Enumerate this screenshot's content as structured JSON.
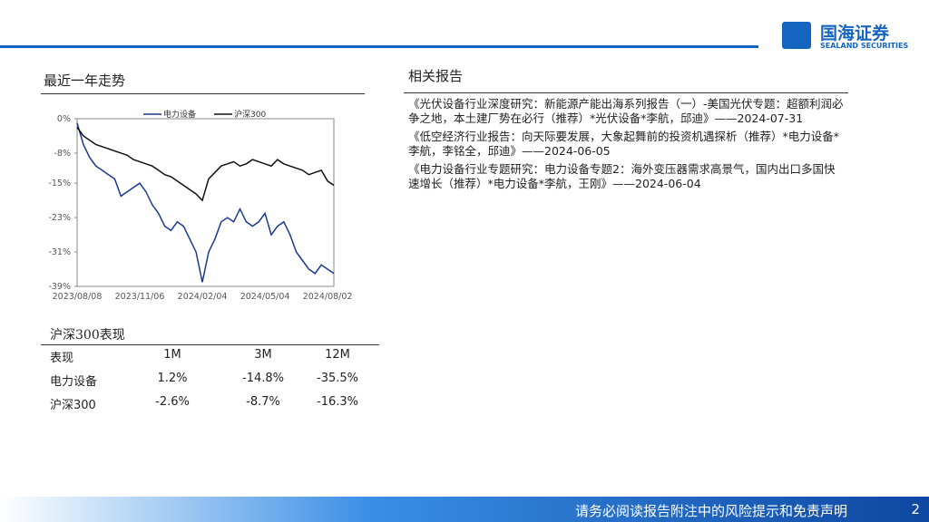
{
  "header": {
    "logo_cn": "国海证券",
    "logo_en": "SEALAND SECURITIES"
  },
  "left_title": "最近一年走势",
  "chart_data": {
    "type": "line",
    "categories": [
      "2023/08/08",
      null,
      null,
      null,
      null,
      null,
      null,
      null,
      null,
      null,
      "2023/11/06",
      null,
      null,
      null,
      null,
      null,
      null,
      null,
      null,
      null,
      "2024/02/04",
      null,
      null,
      null,
      null,
      null,
      null,
      null,
      null,
      null,
      "2024/05/04",
      null,
      null,
      null,
      null,
      null,
      null,
      null,
      null,
      null,
      "2024/08/02",
      null
    ],
    "series": [
      {
        "name": "电力设备",
        "color": "#1a3a8f",
        "values": [
          -1,
          -6,
          -9,
          -11,
          -12,
          -13,
          -14,
          -18,
          -17,
          -16,
          -15,
          -17,
          -20,
          -22,
          -25,
          -26,
          -24,
          -25,
          -28,
          -31,
          -38,
          -31,
          -28,
          -24,
          -23,
          -24,
          -21,
          -24,
          -25,
          -24,
          -22,
          -27,
          -25,
          -24,
          -27,
          -31,
          -33,
          -35,
          -36,
          -34,
          -35,
          -36
        ]
      },
      {
        "name": "沪深300",
        "color": "#111111",
        "values": [
          -2,
          -4,
          -5,
          -6,
          -6.5,
          -7,
          -7.5,
          -8,
          -8.5,
          -9.5,
          -10,
          -10.5,
          -11,
          -12,
          -13,
          -13.5,
          -14.5,
          -15.5,
          -16.5,
          -17.5,
          -19,
          -14,
          -12.5,
          -11,
          -10.5,
          -10,
          -11,
          -10.5,
          -9.5,
          -10,
          -10.5,
          -11,
          -9.5,
          -10.5,
          -11,
          -11.5,
          -12,
          -13,
          -12.5,
          -12,
          -14.5,
          -15.5
        ]
      }
    ],
    "ylim": [
      -39,
      0
    ],
    "yticks": [
      {
        "value": 0,
        "label": "0%"
      },
      {
        "value": -8,
        "label": "-8%"
      },
      {
        "value": -15,
        "label": "-15%"
      },
      {
        "value": -23,
        "label": "-23%"
      },
      {
        "value": -31,
        "label": "-31%"
      },
      {
        "value": -39,
        "label": "-39%"
      }
    ],
    "legend": "top"
  },
  "table": {
    "title": "沪深300表现",
    "headers": [
      "表现",
      "1M",
      "3M",
      "12M"
    ],
    "rows": [
      [
        "电力设备",
        "1.2%",
        "-14.8%",
        "-35.5%"
      ],
      [
        "沪深300",
        "-2.6%",
        "-8.7%",
        "-16.3%"
      ]
    ]
  },
  "right_title": "相关报告",
  "reports": [
    "《光伏设备行业深度研究：新能源产能出海系列报告（一）-美国光伏专题：超额利润必争之地，本土建厂势在必行（推荐）*光伏设备*李航，邱迪》——2024-07-31",
    "《低空经济行业报告：向天际要发展，大象起舞前的投资机遇探析（推荐）*电力设备*李航，李铭全，邱迪》——2024-06-05",
    "《电力设备行业专题研究：电力设备专题2：海外变压器需求高景气，国内出口多国快速增长（推荐）*电力设备*李航，王刚》——2024-06-04"
  ],
  "footer": {
    "disclaimer": "请务必阅读报告附注中的风险提示和免责声明",
    "page": "2"
  }
}
